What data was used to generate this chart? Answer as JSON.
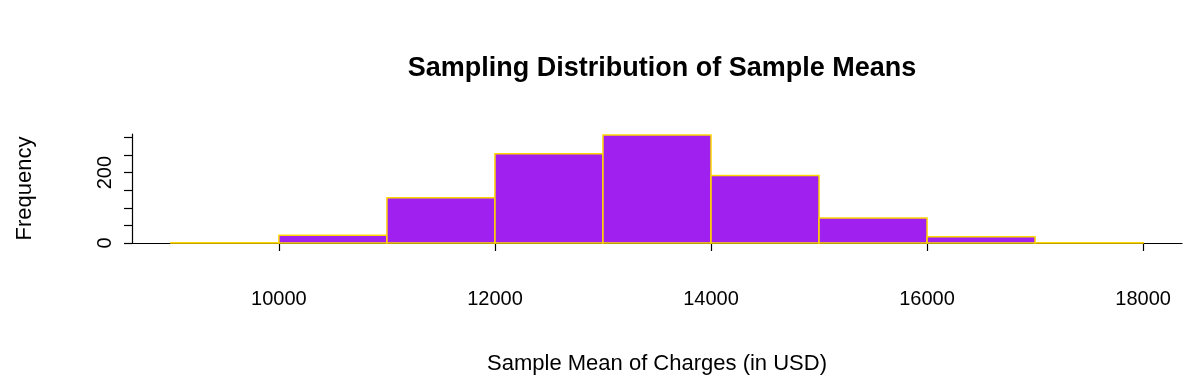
{
  "chart_data": {
    "type": "histogram",
    "title": "Sampling Distribution of Sample Means",
    "xlabel": "Sample Mean of Charges (in USD)",
    "ylabel": "Frequency",
    "bins": [
      9000,
      10000,
      11000,
      12000,
      13000,
      14000,
      15000,
      16000,
      17000,
      18000
    ],
    "values": [
      1,
      22,
      129,
      254,
      307,
      192,
      71,
      18,
      1
    ],
    "color": "#a020f0",
    "xlim": [
      8640,
      18360
    ],
    "xticks": [
      10000,
      12000,
      14000,
      16000,
      18000
    ],
    "ylim": [
      0,
      310
    ],
    "yticks": [
      0,
      {
        "value": 50,
        "label": null
      },
      {
        "value": 100,
        "label": null
      },
      {
        "value": 150,
        "label": null
      },
      200,
      {
        "value": 250,
        "label": null
      },
      {
        "value": 300,
        "label": null
      }
    ],
    "grid": false
  }
}
